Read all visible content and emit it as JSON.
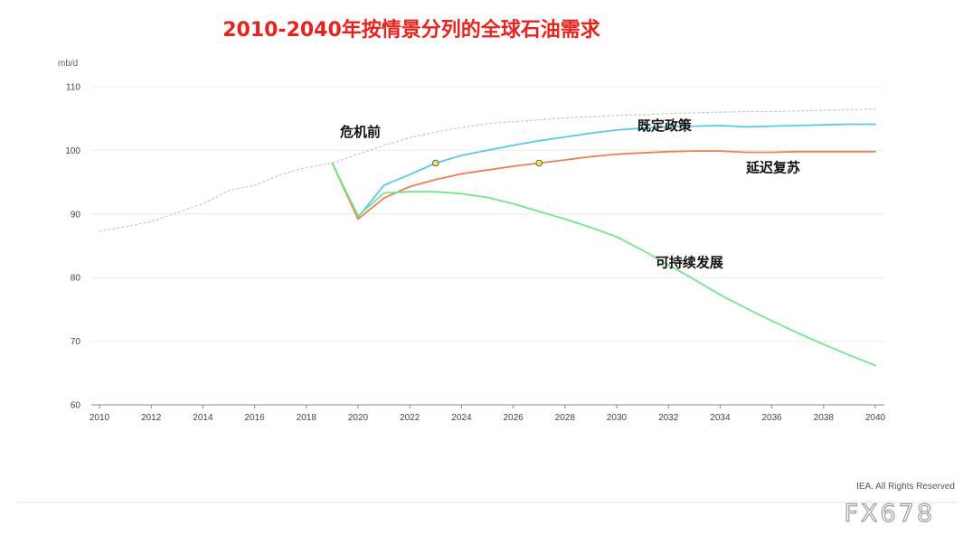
{
  "chart_data": {
    "type": "line",
    "title": "2010-2040年按情景分列的全球石油需求",
    "ylabel": "mb/d",
    "xlabel": "",
    "xlim": [
      2010,
      2040
    ],
    "ylim": [
      60,
      110
    ],
    "y_ticks": [
      60,
      70,
      80,
      90,
      100,
      110
    ],
    "x_ticks": [
      2010,
      2012,
      2014,
      2016,
      2018,
      2020,
      2022,
      2024,
      2026,
      2028,
      2030,
      2032,
      2034,
      2036,
      2038,
      2040
    ],
    "grid": true,
    "series": [
      {
        "name": "危机前",
        "color": "#cccccc",
        "dashed": true,
        "x": [
          2010,
          2011,
          2012,
          2013,
          2014,
          2015,
          2016,
          2017,
          2018,
          2019,
          2020,
          2021,
          2022,
          2023,
          2024,
          2025,
          2026,
          2027,
          2028,
          2029,
          2030,
          2031,
          2032,
          2033,
          2034,
          2035,
          2036,
          2037,
          2038,
          2039,
          2040
        ],
        "values": [
          87.3,
          88.0,
          88.8,
          90.2,
          91.6,
          93.7,
          94.5,
          96.2,
          97.3,
          98.0,
          99.4,
          100.8,
          102.0,
          102.9,
          103.6,
          104.2,
          104.5,
          104.8,
          105.1,
          105.3,
          105.5,
          105.6,
          105.8,
          105.9,
          106.0,
          106.1,
          106.1,
          106.2,
          106.3,
          106.4,
          106.5
        ]
      },
      {
        "name": "既定政策",
        "color": "#5bc8e8",
        "dashed": false,
        "x": [
          2019,
          2020,
          2021,
          2022,
          2023,
          2024,
          2025,
          2026,
          2027,
          2028,
          2029,
          2030,
          2031,
          2032,
          2033,
          2034,
          2035,
          2036,
          2037,
          2038,
          2039,
          2040
        ],
        "values": [
          98.0,
          89.5,
          94.5,
          96.2,
          98.0,
          99.2,
          100.0,
          100.8,
          101.5,
          102.1,
          102.7,
          103.2,
          103.5,
          103.7,
          103.8,
          103.9,
          103.7,
          103.8,
          103.9,
          104.0,
          104.1,
          104.1
        ]
      },
      {
        "name": "延迟复苏",
        "color": "#f07e52",
        "dashed": false,
        "x": [
          2019,
          2020,
          2021,
          2022,
          2023,
          2024,
          2025,
          2026,
          2027,
          2028,
          2029,
          2030,
          2031,
          2032,
          2033,
          2034,
          2035,
          2036,
          2037,
          2038,
          2039,
          2040
        ],
        "values": [
          98.0,
          89.2,
          92.5,
          94.3,
          95.4,
          96.3,
          96.9,
          97.5,
          98.0,
          98.5,
          99.0,
          99.4,
          99.6,
          99.8,
          99.9,
          99.9,
          99.7,
          99.7,
          99.8,
          99.8,
          99.8,
          99.8
        ]
      },
      {
        "name": "可持续发展",
        "color": "#6ee88c",
        "dashed": false,
        "x": [
          2019,
          2020,
          2021,
          2022,
          2023,
          2024,
          2025,
          2026,
          2027,
          2028,
          2029,
          2030,
          2031,
          2032,
          2033,
          2034,
          2035,
          2036,
          2037,
          2038,
          2039,
          2040
        ],
        "values": [
          98.0,
          89.7,
          93.3,
          93.5,
          93.5,
          93.2,
          92.6,
          91.6,
          90.4,
          89.2,
          87.9,
          86.4,
          84.3,
          82.0,
          79.7,
          77.3,
          75.2,
          73.2,
          71.3,
          69.5,
          67.8,
          66.2
        ]
      }
    ],
    "markers": [
      {
        "x": 2023,
        "y": 98.0,
        "color": "#f2e85a"
      },
      {
        "x": 2027,
        "y": 98.0,
        "color": "#f2e85a"
      }
    ],
    "series_labels": [
      {
        "text": "危机前",
        "x": 2019.3,
        "y": 102.9
      },
      {
        "text": "既定政策",
        "x": 2030.8,
        "y": 103.9
      },
      {
        "text": "延迟复苏",
        "x": 2035.0,
        "y": 97.3
      },
      {
        "text": "可持续发展",
        "x": 2031.5,
        "y": 82.4
      }
    ],
    "credit": "IEA. All Rights Reserved"
  },
  "watermark": "FX678"
}
